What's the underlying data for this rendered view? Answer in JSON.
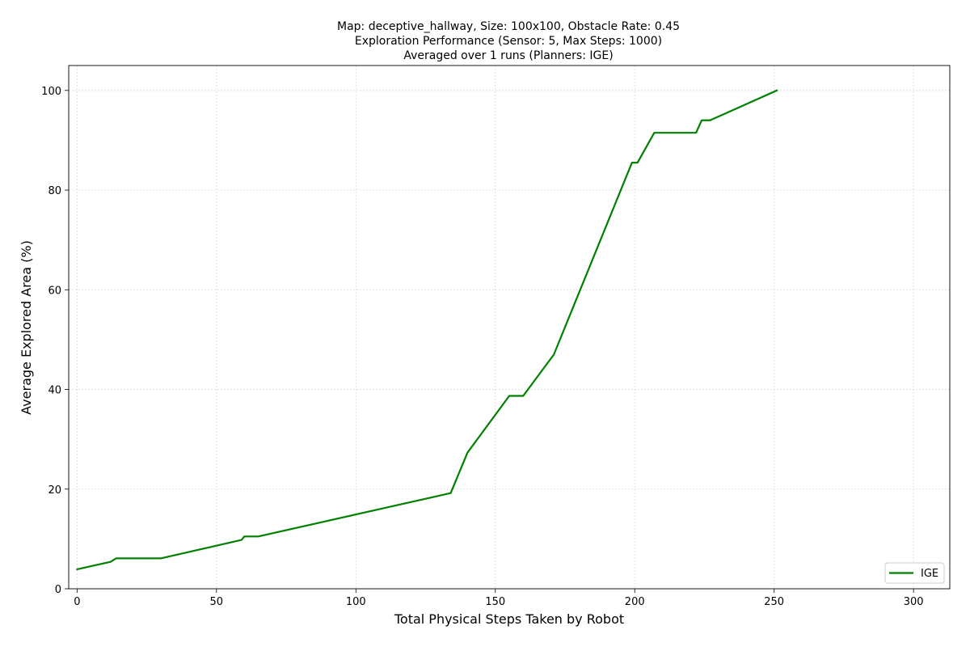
{
  "chart_data": {
    "type": "line",
    "title_lines": [
      "Map: deceptive_hallway, Size: 100x100, Obstacle Rate: 0.45",
      "Exploration Performance (Sensor: 5, Max Steps: 1000)",
      "Averaged over 1 runs (Planners: IGE)"
    ],
    "xlabel": "Total Physical Steps Taken by Robot",
    "ylabel": "Average Explored Area (%)",
    "xlim": [
      -3,
      313
    ],
    "ylim": [
      0,
      105
    ],
    "xticks": [
      0,
      50,
      100,
      150,
      200,
      250,
      300
    ],
    "yticks": [
      0,
      20,
      40,
      60,
      80,
      100
    ],
    "grid": true,
    "legend_position": "lower-right",
    "series": [
      {
        "name": "IGE",
        "color": "#008000",
        "x": [
          0,
          12,
          14,
          30,
          59,
          60,
          65,
          134,
          140,
          155,
          160,
          171,
          199,
          201,
          207,
          222,
          224,
          227,
          251
        ],
        "y": [
          3.9,
          5.4,
          6.1,
          6.1,
          9.8,
          10.5,
          10.5,
          19.2,
          27.3,
          38.7,
          38.7,
          47.0,
          85.5,
          85.5,
          91.5,
          91.5,
          94.0,
          94.0,
          100.0
        ]
      }
    ]
  }
}
